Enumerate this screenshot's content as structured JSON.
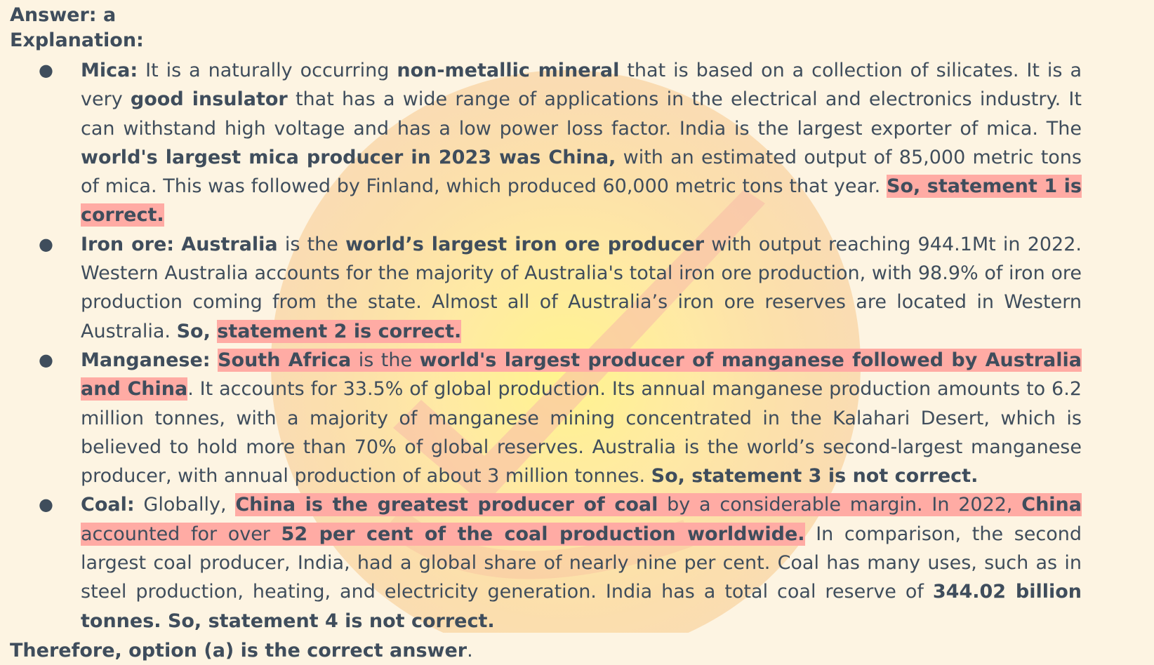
{
  "answer_line": "Answer: a",
  "explanation_label": "Explanation:",
  "items": [
    {
      "id": "mica",
      "segments": [
        {
          "text": "Mica:",
          "b": true
        },
        {
          "text": " It is a naturally occurring "
        },
        {
          "text": "non-metallic mineral",
          "b": true
        },
        {
          "text": " that is based on a collection of silicates. It is a very "
        },
        {
          "text": "good insulator",
          "b": true
        },
        {
          "text": " that has a wide range of applications in the electrical and electronics industry. It can withstand high voltage and has a low power loss factor. India is the largest exporter of mica. The "
        },
        {
          "text": "world's largest mica producer in 2023 was China,",
          "b": true
        },
        {
          "text": " with an estimated output of 85,000 metric tons of mica. This was followed by Finland, which produced 60,000 metric tons that year. "
        },
        {
          "text": "So, statement 1 is correct.",
          "b": true,
          "hl": true
        }
      ]
    },
    {
      "id": "iron-ore",
      "segments": [
        {
          "text": "Iron ore:",
          "b": true
        },
        {
          "text": " "
        },
        {
          "text": "Australia",
          "b": true
        },
        {
          "text": " is the "
        },
        {
          "text": "world’s largest iron ore producer",
          "b": true
        },
        {
          "text": " with output reaching 944.1Mt in 2022. Western Australia accounts for the majority of Australia's total iron ore production, with 98.9% of iron ore production coming from the state. Almost all of Australia’s iron ore reserves are located in Western Australia. "
        },
        {
          "text": "So, ",
          "b": true
        },
        {
          "text": "statement 2 is correct.",
          "b": true,
          "hl": true
        }
      ]
    },
    {
      "id": "manganese",
      "segments": [
        {
          "text": "Manganese:",
          "b": true
        },
        {
          "text": " "
        },
        {
          "text": "South Africa",
          "b": true,
          "hl": true
        },
        {
          "text": " is the ",
          "hl": true
        },
        {
          "text": "world's largest producer of manganese followed by Australia and China",
          "b": true,
          "hl": true
        },
        {
          "text": ". It accounts for 33.5% of global production. Its annual manganese production amounts to 6.2 million tonnes, with a majority of manganese mining concentrated in the Kalahari Desert, which is believed to hold more than 70% of global reserves. Australia is the world’s second-largest manganese producer, with annual production of about 3 million tonnes. "
        },
        {
          "text": "So, statement 3 is not correct.",
          "b": true
        }
      ]
    },
    {
      "id": "coal",
      "segments": [
        {
          "text": "Coal:",
          "b": true
        },
        {
          "text": " Globally, "
        },
        {
          "text": "China is the greatest producer of coal",
          "b": true,
          "hl": true
        },
        {
          "text": " by a considerable margin. In 2022, ",
          "hl": true
        },
        {
          "text": "China",
          "b": true,
          "hl": true
        },
        {
          "text": " accounted for over ",
          "hl": true
        },
        {
          "text": "52 per cent of the coal production worldwide.",
          "b": true,
          "hl": true
        },
        {
          "text": " In comparison, the second largest coal producer, India, had a global share of nearly nine per cent. Coal has many uses, such as in steel production, heating, and electricity generation. India has a total coal reserve of "
        },
        {
          "text": "344.02 billion tonnes. So, statement 4 is not correct.",
          "b": true
        }
      ]
    }
  ],
  "conclusion": [
    {
      "text": "Therefore, option (a) is the correct answer",
      "b": true
    },
    {
      "text": "."
    }
  ],
  "colors": {
    "background": "#fdf4e2",
    "text": "#3f4d5c",
    "highlight": "#ffaba4",
    "watermark_outer": "#f7c88a",
    "watermark_inner": "#fff27a"
  }
}
